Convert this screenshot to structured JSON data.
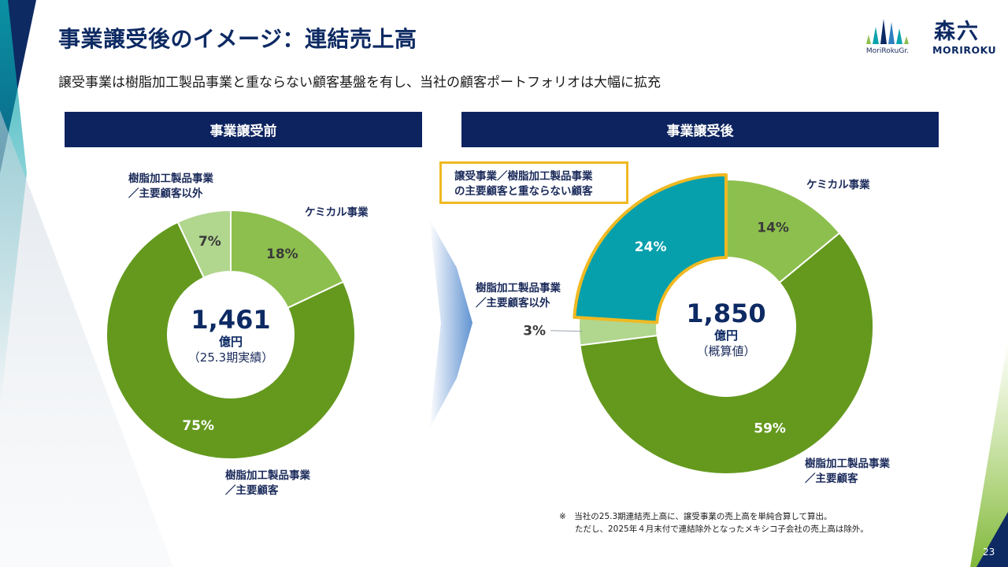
{
  "title": "事業譲受後のイメージ：連結売上高",
  "subtitle": "譲受事業は樹脂加工製品事業と重ならない顧客基盤を有し、当社の顧客ポートフォリオは大幅に拡充",
  "logos": {
    "group_name": "MoriRokuGr.",
    "company_mark": "森六",
    "company_name": "MORIROKU"
  },
  "colors": {
    "navy": "#0d2360",
    "green_dark": "#64991e",
    "green_mid": "#8dbf4e",
    "green_light": "#b1d68e",
    "teal": "#05a0ac",
    "highlight": "#f0b922"
  },
  "panels": {
    "before": {
      "header": "事業譲受前",
      "center_value": "1,461",
      "center_unit": "億円",
      "center_note": "（25.3期実績）",
      "labels": {
        "chemical": "ケミカル事業",
        "resin_other_line1": "樹脂加工製品事業",
        "resin_other_line2": "／主要顧客以外",
        "resin_main_line1": "樹脂加工製品事業",
        "resin_main_line2": "／主要顧客"
      }
    },
    "after": {
      "header": "事業譲受後",
      "center_value": "1,850",
      "center_unit": "億円",
      "center_note": "（概算値）",
      "callout_line1": "譲受事業／樹脂加工製品事業",
      "callout_line2": "の主要顧客と重ならない顧客",
      "labels": {
        "chemical": "ケミカル事業",
        "resin_other_line1": "樹脂加工製品事業",
        "resin_other_line2": "／主要顧客以外",
        "resin_main_line1": "樹脂加工製品事業",
        "resin_main_line2": "／主要顧客"
      }
    }
  },
  "chart_data": [
    {
      "type": "pie",
      "title": "事業譲受前",
      "total": 1461,
      "unit": "億円",
      "slices": [
        {
          "name": "ケミカル事業",
          "value": 18,
          "label": "18%",
          "color": "#8dbf4e"
        },
        {
          "name": "樹脂加工製品事業／主要顧客",
          "value": 75,
          "label": "75%",
          "color": "#64991e"
        },
        {
          "name": "樹脂加工製品事業／主要顧客以外",
          "value": 7,
          "label": "7%",
          "color": "#b1d68e"
        }
      ]
    },
    {
      "type": "pie",
      "title": "事業譲受後",
      "total": 1850,
      "unit": "億円",
      "slices": [
        {
          "name": "ケミカル事業",
          "value": 14,
          "label": "14%",
          "color": "#8dbf4e"
        },
        {
          "name": "樹脂加工製品事業／主要顧客",
          "value": 59,
          "label": "59%",
          "color": "#64991e"
        },
        {
          "name": "樹脂加工製品事業／主要顧客以外",
          "value": 3,
          "label": "3%",
          "color": "#b1d68e"
        },
        {
          "name": "譲受事業／樹脂加工製品事業の主要顧客と重ならない顧客",
          "value": 24,
          "label": "24%",
          "color": "#05a0ac"
        }
      ]
    }
  ],
  "footnote_line1": "※　当社の25.3期連結売上高に、譲受事業の売上高を単純合算して算出。",
  "footnote_line2": "ただし、2025年４月末付で連結除外となったメキシコ子会社の売上高は除外。",
  "page_number": "23"
}
